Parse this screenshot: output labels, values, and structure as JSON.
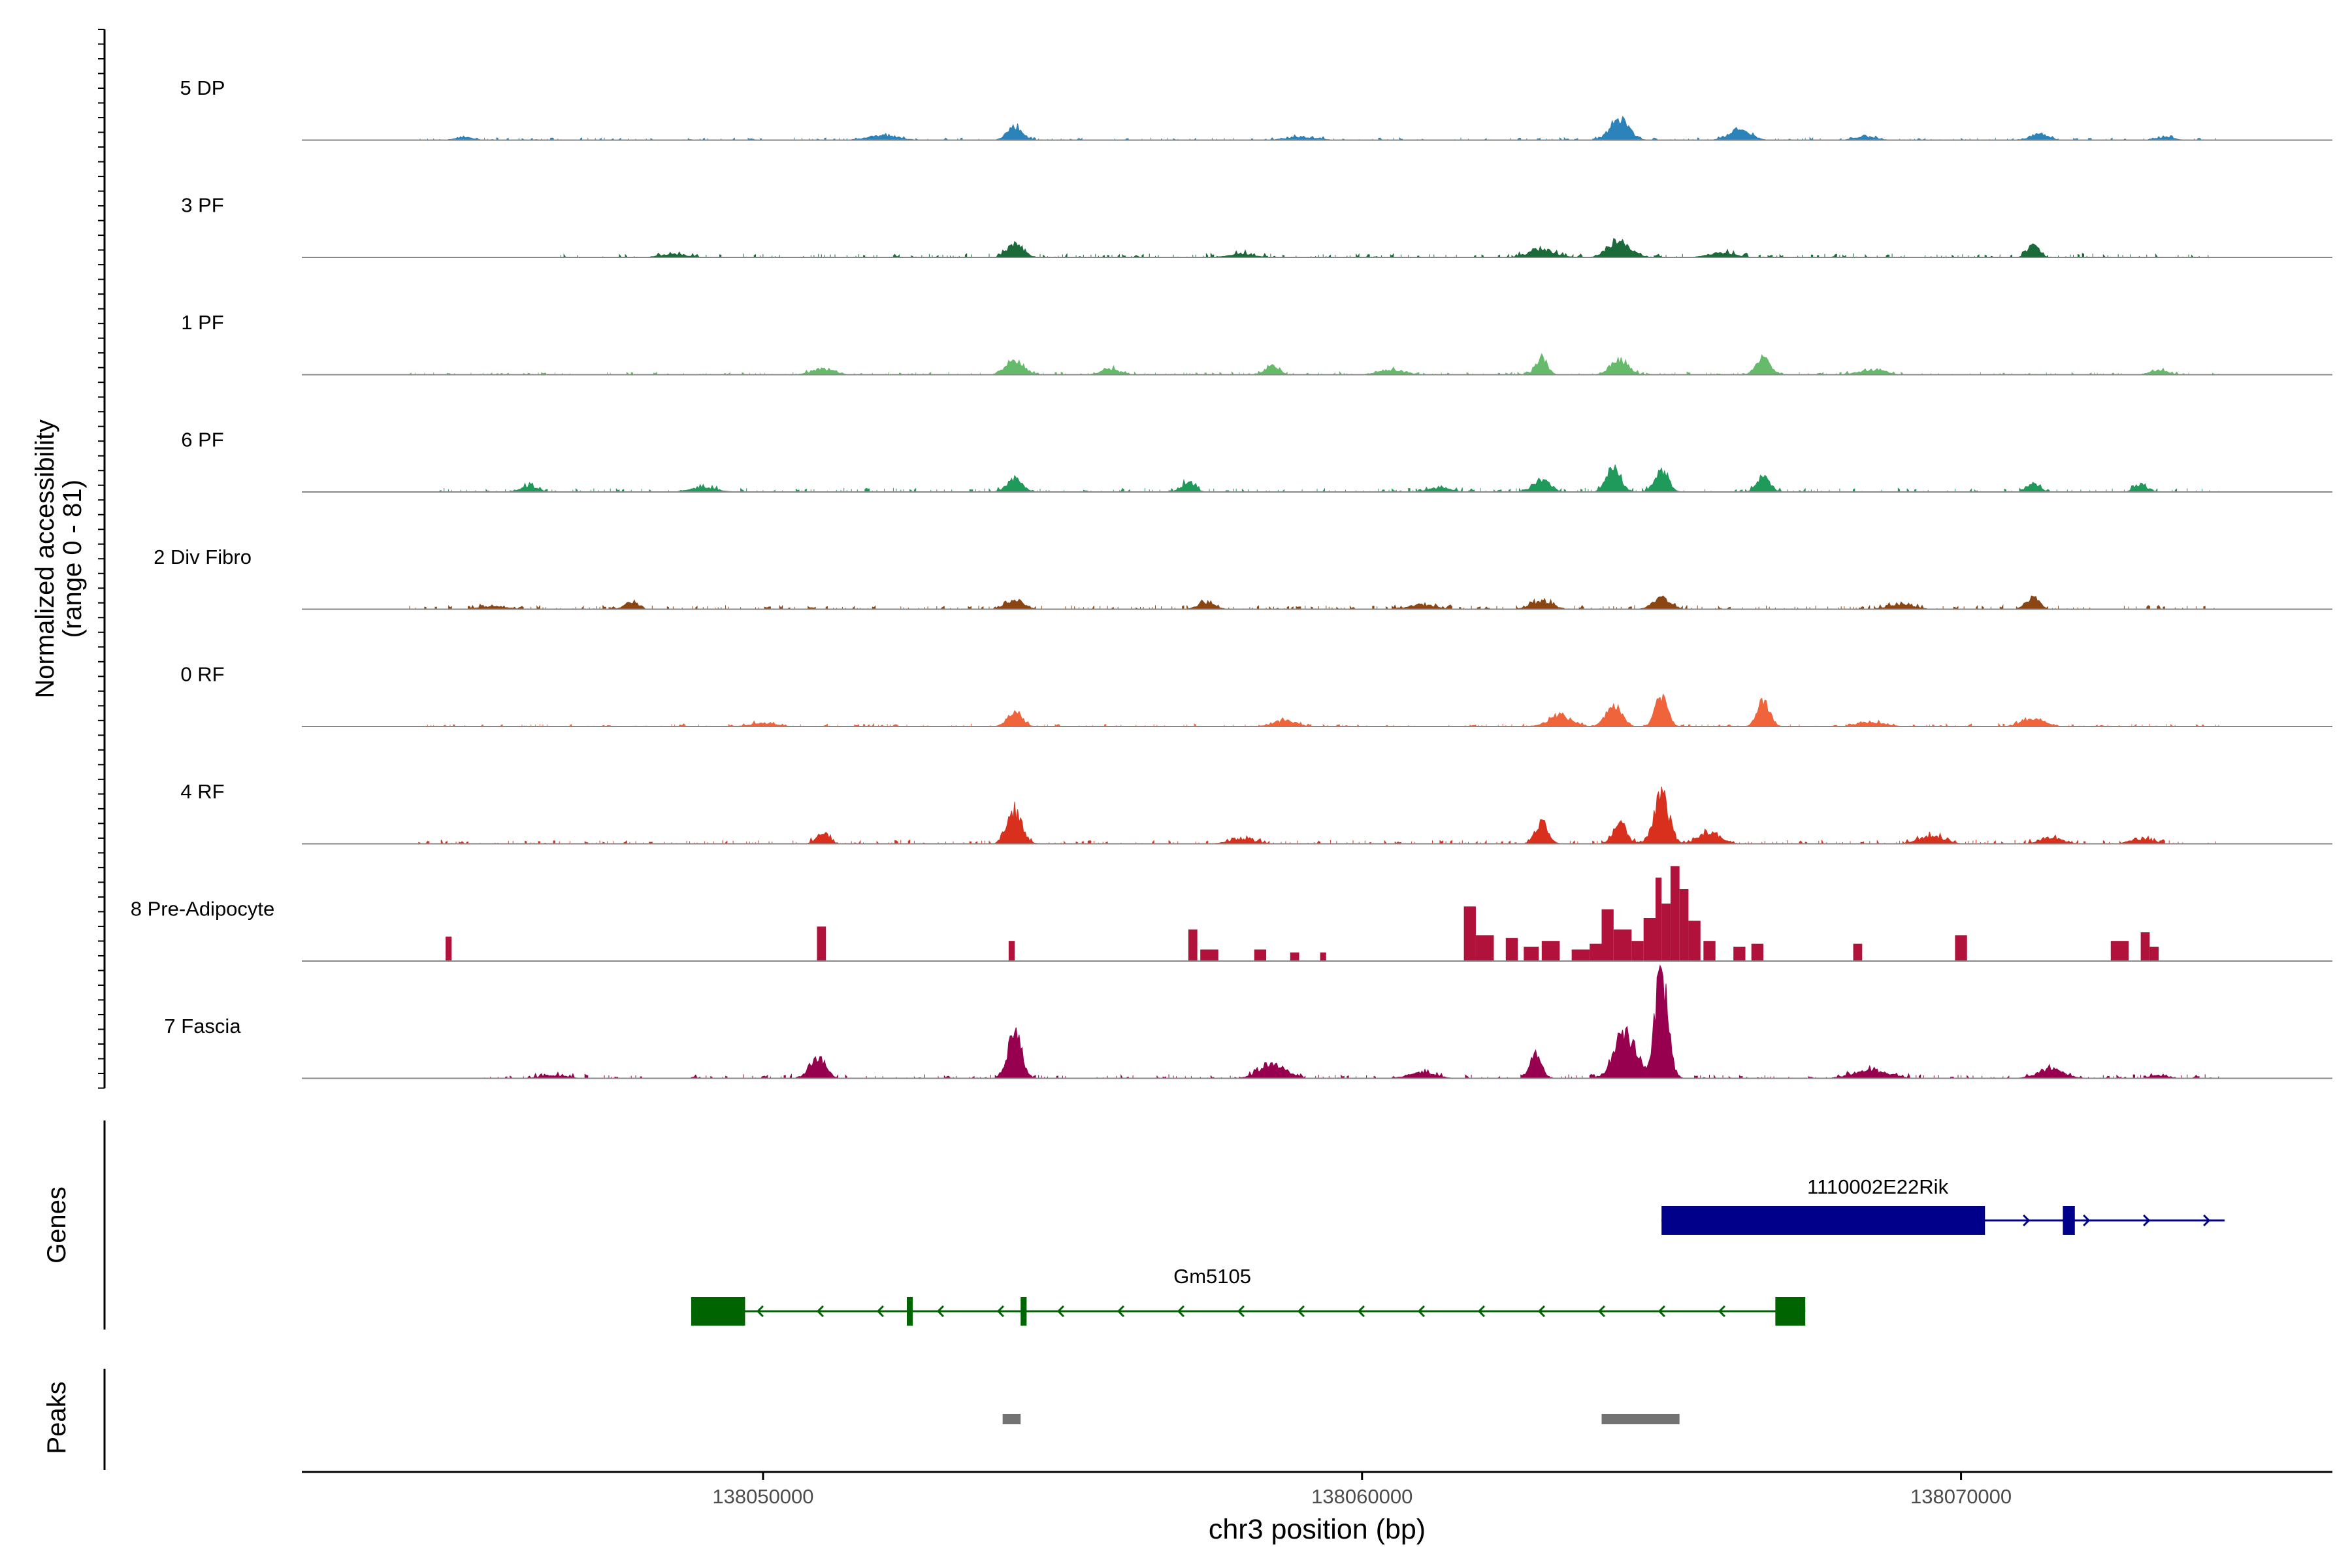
{
  "chart_data": {
    "type": "area",
    "title": "",
    "ylabel_line1": "Normalized accessibility",
    "ylabel_line2": "(range 0 - 81)",
    "yrange": [
      0,
      81
    ],
    "xlabel": "chr3 position (bp)",
    "chrom": "chr3",
    "xlim": [
      138042300,
      138076200
    ],
    "xticks": [
      138050000,
      138060000,
      138070000
    ],
    "xtick_labels": [
      "138050000",
      "138060000",
      "138070000"
    ],
    "signal_start": 138044100,
    "signal_end": 138074400,
    "tracks": [
      {
        "name": "5 DP",
        "color": "#2b83ba",
        "peaks": [
          [
            138054200,
            9,
            180
          ],
          [
            138064300,
            14,
            220
          ],
          [
            138066300,
            7,
            250
          ],
          [
            138045000,
            2,
            200
          ],
          [
            138052000,
            3,
            350
          ],
          [
            138059000,
            2,
            350
          ],
          [
            138071300,
            4,
            200
          ],
          [
            138068400,
            2,
            250
          ],
          [
            138073400,
            2,
            200
          ]
        ],
        "noise": 2,
        "cover": [
          [
            138044200,
            138074300
          ]
        ]
      },
      {
        "name": "3 PF",
        "color": "#1b6b3a",
        "peaks": [
          [
            138054200,
            9,
            180
          ],
          [
            138064300,
            11,
            250
          ],
          [
            138071200,
            9,
            130
          ],
          [
            138063000,
            5,
            300
          ],
          [
            138066000,
            3,
            300
          ],
          [
            138048500,
            2,
            300
          ],
          [
            138058000,
            2,
            300
          ]
        ],
        "noise": 3,
        "cover": [
          [
            138046600,
            138074300
          ]
        ]
      },
      {
        "name": "1 PF",
        "color": "#66bb6a",
        "peaks": [
          [
            138054200,
            10,
            200
          ],
          [
            138063000,
            11,
            130
          ],
          [
            138064300,
            10,
            200
          ],
          [
            138066700,
            11,
            160
          ],
          [
            138058500,
            6,
            150
          ],
          [
            138055800,
            4,
            200
          ],
          [
            138051000,
            4,
            250
          ],
          [
            138060500,
            3,
            300
          ],
          [
            138068500,
            3,
            300
          ],
          [
            138073300,
            3,
            200
          ]
        ],
        "noise": 2,
        "cover": [
          [
            138044000,
            138074300
          ]
        ]
      },
      {
        "name": "6 PF",
        "color": "#1f9a5b",
        "peaks": [
          [
            138054200,
            9,
            180
          ],
          [
            138064200,
            17,
            160
          ],
          [
            138065000,
            14,
            160
          ],
          [
            138066700,
            10,
            150
          ],
          [
            138063000,
            8,
            200
          ],
          [
            138057100,
            6,
            150
          ],
          [
            138046100,
            4,
            200
          ],
          [
            138071200,
            6,
            150
          ],
          [
            138073000,
            5,
            150
          ],
          [
            138049000,
            3,
            300
          ],
          [
            138061300,
            3,
            250
          ]
        ],
        "noise": 3,
        "cover": [
          [
            138044600,
            138074300
          ]
        ]
      },
      {
        "name": "2 Div Fibro",
        "color": "#8b4513",
        "peaks": [
          [
            138054200,
            6,
            200
          ],
          [
            138065000,
            8,
            200
          ],
          [
            138071200,
            8,
            150
          ],
          [
            138047800,
            5,
            150
          ],
          [
            138057400,
            4,
            200
          ],
          [
            138063000,
            5,
            250
          ],
          [
            138061000,
            3,
            300
          ],
          [
            138069000,
            3,
            300
          ],
          [
            138045500,
            2,
            300
          ]
        ],
        "noise": 3,
        "cover": [
          [
            138044100,
            138074300
          ]
        ]
      },
      {
        "name": "0 RF",
        "color": "#f0643c",
        "peaks": [
          [
            138054200,
            11,
            160
          ],
          [
            138064200,
            14,
            180
          ],
          [
            138065000,
            21,
            140
          ],
          [
            138066700,
            18,
            140
          ],
          [
            138063300,
            8,
            250
          ],
          [
            138058700,
            4,
            250
          ],
          [
            138071200,
            5,
            250
          ],
          [
            138068500,
            3,
            300
          ],
          [
            138050000,
            2,
            300
          ]
        ],
        "noise": 2,
        "cover": [
          [
            138044200,
            138074300
          ]
        ]
      },
      {
        "name": "4 RF",
        "color": "#d9301e",
        "peaks": [
          [
            138054200,
            22,
            170
          ],
          [
            138065000,
            33,
            170
          ],
          [
            138063000,
            15,
            150
          ],
          [
            138064300,
            15,
            150
          ],
          [
            138065800,
            8,
            250
          ],
          [
            138051000,
            6,
            150
          ],
          [
            138058000,
            3,
            300
          ],
          [
            138069500,
            5,
            300
          ],
          [
            138071500,
            4,
            250
          ],
          [
            138073000,
            3,
            250
          ]
        ],
        "noise": 3,
        "cover": [
          [
            138044200,
            138074300
          ]
        ]
      },
      {
        "name": "8 Pre-Adipocyte",
        "color": "#b0123c",
        "blocks": [
          [
            138044700,
            138044800,
            17
          ],
          [
            138050900,
            138051050,
            24
          ],
          [
            138054100,
            138054200,
            14
          ],
          [
            138057100,
            138057250,
            22
          ],
          [
            138057300,
            138057600,
            8
          ],
          [
            138058200,
            138058400,
            8
          ],
          [
            138058800,
            138058950,
            6
          ],
          [
            138059300,
            138059400,
            6
          ],
          [
            138061700,
            138061900,
            38
          ],
          [
            138061900,
            138062200,
            18
          ],
          [
            138062400,
            138062600,
            16
          ],
          [
            138062700,
            138062950,
            10
          ],
          [
            138063000,
            138063300,
            14
          ],
          [
            138063500,
            138063800,
            8
          ],
          [
            138063800,
            138064000,
            12
          ],
          [
            138064000,
            138064200,
            36
          ],
          [
            138064200,
            138064500,
            22
          ],
          [
            138064500,
            138064700,
            14
          ],
          [
            138064700,
            138064900,
            30
          ],
          [
            138064900,
            138065000,
            58
          ],
          [
            138065000,
            138065150,
            40
          ],
          [
            138065150,
            138065300,
            66
          ],
          [
            138065300,
            138065450,
            50
          ],
          [
            138065450,
            138065650,
            28
          ],
          [
            138065700,
            138065900,
            14
          ],
          [
            138066200,
            138066400,
            10
          ],
          [
            138066500,
            138066700,
            12
          ],
          [
            138068200,
            138068350,
            12
          ],
          [
            138069900,
            138070100,
            18
          ],
          [
            138072500,
            138072800,
            14
          ],
          [
            138073000,
            138073150,
            20
          ],
          [
            138073150,
            138073300,
            10
          ]
        ]
      },
      {
        "name": "7 Fascia",
        "color": "#96004f",
        "peaks": [
          [
            138054200,
            32,
            160
          ],
          [
            138065000,
            72,
            150
          ],
          [
            138064400,
            30,
            250
          ],
          [
            138062900,
            16,
            130
          ],
          [
            138050900,
            14,
            180
          ],
          [
            138058500,
            10,
            300
          ],
          [
            138061000,
            4,
            300
          ],
          [
            138068500,
            5,
            400
          ],
          [
            138071500,
            6,
            300
          ],
          [
            138046500,
            2,
            300
          ],
          [
            138048500,
            2,
            300
          ],
          [
            138073300,
            2,
            200
          ]
        ],
        "noise": 3,
        "cover": [
          [
            138045300,
            138048000
          ],
          [
            138048800,
            138074300
          ]
        ]
      }
    ],
    "genes_label": "Genes",
    "genes": [
      {
        "name": "1110002E22Rik",
        "color": "#00008b",
        "strand": "+",
        "start": 138065000,
        "end": 138074400,
        "exons": [
          [
            138065000,
            138070400
          ],
          [
            138071700,
            138071900
          ]
        ],
        "row": 0
      },
      {
        "name": "Gm5105",
        "color": "#006400",
        "strand": "-",
        "start": 138048800,
        "end": 138067400,
        "exons": [
          [
            138048800,
            138049700
          ],
          [
            138052400,
            138052500
          ],
          [
            138054300,
            138054400
          ],
          [
            138066900,
            138067400
          ]
        ],
        "row": 1
      }
    ],
    "peaks_label": "Peaks",
    "peak_regions": [
      [
        138054000,
        138054300
      ],
      [
        138064000,
        138065300
      ]
    ]
  }
}
